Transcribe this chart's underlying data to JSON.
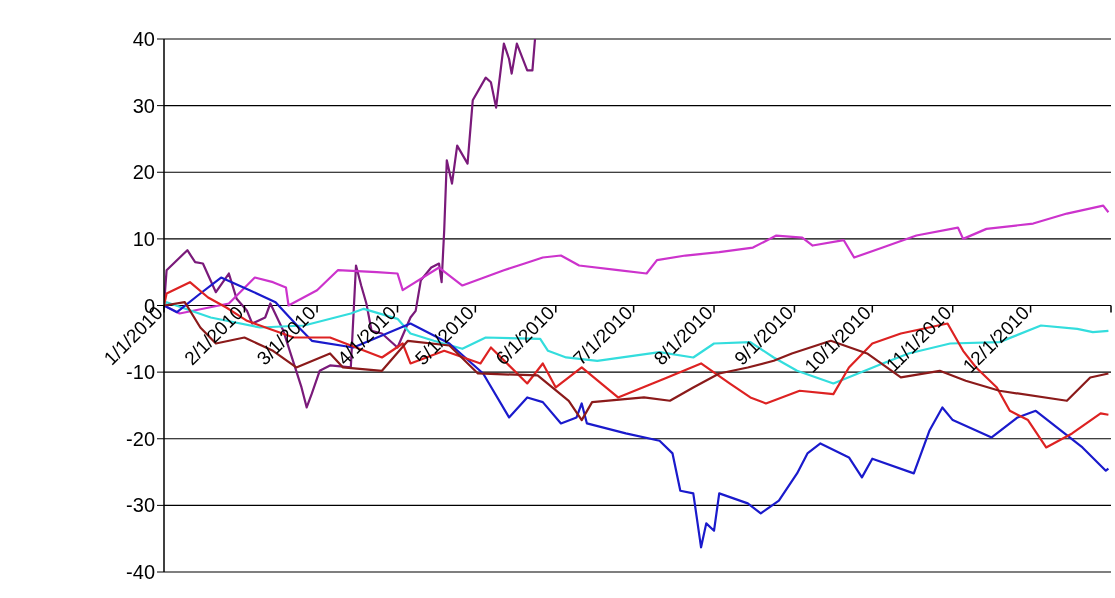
{
  "chart_data": {
    "type": "line",
    "xlim": [
      "2010-01-01",
      "2011-01-01"
    ],
    "xticks": [
      {
        "value": "2010-01-01",
        "label": "1/1/2010"
      },
      {
        "value": "2010-02-01",
        "label": "2/1/2010"
      },
      {
        "value": "2010-03-01",
        "label": "3/1/2010"
      },
      {
        "value": "2010-04-01",
        "label": "4/1/2010"
      },
      {
        "value": "2010-05-01",
        "label": "5/1/2010"
      },
      {
        "value": "2010-06-01",
        "label": "6/1/2010"
      },
      {
        "value": "2010-07-01",
        "label": "7/1/2010"
      },
      {
        "value": "2010-08-01",
        "label": "8/1/2010"
      },
      {
        "value": "2010-09-01",
        "label": "9/1/2010"
      },
      {
        "value": "2010-10-01",
        "label": "10/1/2010"
      },
      {
        "value": "2010-11-01",
        "label": "11/1/2010"
      },
      {
        "value": "2010-12-01",
        "label": "12/1/2010"
      },
      {
        "value": "2011-01-01",
        "label": null
      }
    ],
    "ylim": [
      -40,
      40
    ],
    "yticks": [
      -40,
      -30,
      -20,
      -10,
      0,
      10,
      20,
      30,
      40
    ],
    "grid": "y",
    "series": [
      {
        "color": "#7a1a7a",
        "x": [
          "2010-01-01",
          "2010-01-02",
          "2010-01-10",
          "2010-01-13",
          "2010-01-16",
          "2010-01-21",
          "2010-01-26",
          "2010-01-29",
          "2010-02-02",
          "2010-02-04",
          "2010-02-09",
          "2010-02-11",
          "2010-02-16",
          "2010-02-23",
          "2010-02-25",
          "2010-02-27",
          "2010-03-02",
          "2010-03-06",
          "2010-03-14",
          "2010-03-16",
          "2010-03-18",
          "2010-03-20",
          "2010-03-22",
          "2010-03-26",
          "2010-04-01",
          "2010-04-06",
          "2010-04-08",
          "2010-04-10",
          "2010-04-14",
          "2010-04-17",
          "2010-04-18",
          "2010-04-19",
          "2010-04-20",
          "2010-04-22",
          "2010-04-24",
          "2010-04-28",
          "2010-04-30",
          "2010-05-05",
          "2010-05-07",
          "2010-05-09",
          "2010-05-12",
          "2010-05-14",
          "2010-05-15",
          "2010-05-17",
          "2010-05-21",
          "2010-05-23",
          "2010-05-24"
        ],
        "values": [
          0,
          5.3,
          8.3,
          6.5,
          6.3,
          2,
          4.8,
          1,
          -0.8,
          -2.7,
          -1.8,
          0.3,
          -3.8,
          -12.3,
          -15.3,
          -13.2,
          -9.8,
          -9,
          -9.3,
          6,
          3,
          0.3,
          -3.8,
          -4.2,
          -6.3,
          -1.8,
          -0.8,
          3.8,
          5.7,
          6.3,
          3.5,
          11.3,
          21.8,
          18.3,
          24,
          21.3,
          30.8,
          34.2,
          33.5,
          29.7,
          39.3,
          37,
          34.8,
          39.3,
          35.3,
          35.3,
          40
        ]
      },
      {
        "color": "#cc33cc",
        "x": [
          "2010-01-01",
          "2010-01-07",
          "2010-01-26",
          "2010-02-05",
          "2010-02-12",
          "2010-02-17",
          "2010-02-18",
          "2010-03-01",
          "2010-03-09",
          "2010-03-24",
          "2010-04-01",
          "2010-04-03",
          "2010-04-17",
          "2010-04-26",
          "2010-05-12",
          "2010-05-20",
          "2010-05-27",
          "2010-06-03",
          "2010-06-10",
          "2010-06-25",
          "2010-07-06",
          "2010-07-10",
          "2010-07-21",
          "2010-08-03",
          "2010-08-16",
          "2010-08-25",
          "2010-09-04",
          "2010-09-08",
          "2010-09-20",
          "2010-09-24",
          "2010-10-05",
          "2010-10-18",
          "2010-11-03",
          "2010-11-05",
          "2010-11-14",
          "2010-12-02",
          "2010-12-15",
          "2010-12-29",
          "2010-12-31"
        ],
        "values": [
          0,
          -1.2,
          0.3,
          4.2,
          3.5,
          2.7,
          0,
          2.3,
          5.3,
          5,
          4.8,
          2.3,
          5.7,
          3,
          5.3,
          6.3,
          7.2,
          7.5,
          6,
          5.3,
          4.8,
          6.8,
          7.5,
          8,
          8.7,
          10.5,
          10.2,
          9,
          9.8,
          7.2,
          8.7,
          10.5,
          11.7,
          10,
          11.5,
          12.3,
          13.8,
          15,
          14
        ]
      },
      {
        "color": "#33dddd",
        "x": [
          "2010-01-01",
          "2010-01-02",
          "2010-01-19",
          "2010-02-07",
          "2010-02-24",
          "2010-03-14",
          "2010-03-19",
          "2010-04-01",
          "2010-04-06",
          "2010-04-15",
          "2010-04-26",
          "2010-05-05",
          "2010-05-26",
          "2010-05-29",
          "2010-06-05",
          "2010-06-17",
          "2010-07-11",
          "2010-07-24",
          "2010-08-01",
          "2010-08-15",
          "2010-08-24",
          "2010-09-02",
          "2010-09-16",
          "2010-10-05",
          "2010-10-15",
          "2010-10-31",
          "2010-11-19",
          "2010-12-05",
          "2010-12-19",
          "2010-12-25",
          "2010-12-31"
        ],
        "values": [
          0,
          0.5,
          -1.8,
          -3.3,
          -3,
          -1.2,
          -0.5,
          -2,
          -4.2,
          -5.3,
          -6.5,
          -4.8,
          -5,
          -6.8,
          -7.8,
          -8.3,
          -7,
          -7.8,
          -5.7,
          -5.5,
          -7.8,
          -9.8,
          -11.7,
          -8.7,
          -7.2,
          -5.7,
          -5.5,
          -3,
          -3.5,
          -4,
          -3.8
        ]
      },
      {
        "color": "#1a1acc",
        "x": [
          "2010-01-01",
          "2010-01-06",
          "2010-01-15",
          "2010-01-23",
          "2010-02-03",
          "2010-02-13",
          "2010-02-22",
          "2010-02-27",
          "2010-03-15",
          "2010-04-06",
          "2010-04-21",
          "2010-05-04",
          "2010-05-14",
          "2010-05-21",
          "2010-05-27",
          "2010-06-03",
          "2010-06-09",
          "2010-06-11",
          "2010-06-13",
          "2010-06-28",
          "2010-07-11",
          "2010-07-16",
          "2010-07-19",
          "2010-07-24",
          "2010-07-27",
          "2010-07-29",
          "2010-08-01",
          "2010-08-03",
          "2010-08-14",
          "2010-08-19",
          "2010-08-26",
          "2010-09-02",
          "2010-09-06",
          "2010-09-11",
          "2010-09-22",
          "2010-09-27",
          "2010-10-01",
          "2010-10-17",
          "2010-10-23",
          "2010-10-28",
          "2010-11-01",
          "2010-11-16",
          "2010-11-26",
          "2010-12-03",
          "2010-12-21",
          "2010-12-30",
          "2010-12-31"
        ],
        "values": [
          0,
          -1,
          1.8,
          4.2,
          2.3,
          0.5,
          -3.3,
          -5.3,
          -6.3,
          -2.7,
          -5.7,
          -10.2,
          -16.8,
          -13.8,
          -14.5,
          -17.7,
          -16.8,
          -14.7,
          -17.7,
          -19.2,
          -20.3,
          -22.2,
          -27.8,
          -28.2,
          -36.3,
          -32.7,
          -33.8,
          -28.2,
          -29.7,
          -31.2,
          -29.3,
          -25.2,
          -22.2,
          -20.7,
          -22.8,
          -25.8,
          -23,
          -25.2,
          -18.8,
          -15.3,
          -17.2,
          -19.8,
          -16.8,
          -15.8,
          -21.3,
          -24.8,
          -24.5
        ]
      },
      {
        "color": "#dd2222",
        "x": [
          "2010-01-01",
          "2010-01-02",
          "2010-01-11",
          "2010-01-18",
          "2010-01-25",
          "2010-02-02",
          "2010-02-20",
          "2010-03-06",
          "2010-03-26",
          "2010-04-03",
          "2010-04-06",
          "2010-04-19",
          "2010-05-03",
          "2010-05-07",
          "2010-05-21",
          "2010-05-27",
          "2010-06-01",
          "2010-06-11",
          "2010-06-25",
          "2010-07-14",
          "2010-07-27",
          "2010-08-07",
          "2010-08-15",
          "2010-08-21",
          "2010-09-03",
          "2010-09-16",
          "2010-09-22",
          "2010-10-01",
          "2010-10-12",
          "2010-10-30",
          "2010-11-05",
          "2010-11-10",
          "2010-11-18",
          "2010-11-23",
          "2010-11-30",
          "2010-12-07",
          "2010-12-17",
          "2010-12-28",
          "2010-12-31"
        ],
        "values": [
          0,
          1.8,
          3.5,
          1.2,
          -0.3,
          -2.3,
          -4.8,
          -4.8,
          -7.8,
          -5.7,
          -8.7,
          -6.8,
          -8.7,
          -6.3,
          -11.7,
          -8.7,
          -12.3,
          -9.3,
          -13.8,
          -10.8,
          -8.7,
          -11.7,
          -13.8,
          -14.7,
          -12.8,
          -13.3,
          -9.3,
          -5.7,
          -4.2,
          -2.7,
          -6.8,
          -9.3,
          -12.3,
          -15.8,
          -17.2,
          -21.3,
          -19.2,
          -16.2,
          -16.4
        ]
      },
      {
        "color": "#8b1a1a",
        "x": [
          "2010-01-01",
          "2010-01-09",
          "2010-01-15",
          "2010-01-21",
          "2010-02-01",
          "2010-02-12",
          "2010-02-21",
          "2010-03-06",
          "2010-03-11",
          "2010-03-26",
          "2010-04-05",
          "2010-04-21",
          "2010-05-02",
          "2010-05-25",
          "2010-06-06",
          "2010-06-11",
          "2010-06-15",
          "2010-07-05",
          "2010-07-15",
          "2010-07-24",
          "2010-08-03",
          "2010-08-14",
          "2010-08-24",
          "2010-08-31",
          "2010-09-15",
          "2010-09-29",
          "2010-10-12",
          "2010-10-27",
          "2010-11-06",
          "2010-11-19",
          "2010-12-15",
          "2010-12-24",
          "2010-12-31"
        ],
        "values": [
          0,
          0.5,
          -3.3,
          -5.7,
          -4.8,
          -6.8,
          -9.3,
          -7.2,
          -9.3,
          -9.8,
          -5.3,
          -6,
          -10.2,
          -10.5,
          -14.3,
          -17.2,
          -14.5,
          -13.8,
          -14.3,
          -12.3,
          -10.2,
          -9.3,
          -8.3,
          -7.2,
          -5.3,
          -7.2,
          -10.8,
          -9.8,
          -11.3,
          -12.8,
          -14.3,
          -10.8,
          -10.2
        ]
      }
    ]
  }
}
